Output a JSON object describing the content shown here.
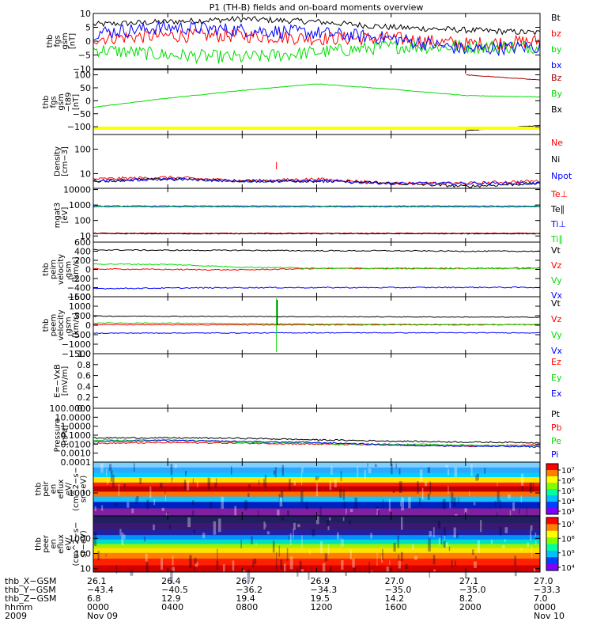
{
  "title": "P1 (TH-B) fields and on-board moments overview",
  "panels": [
    {
      "id": "fgs",
      "ylabel": [
        "thb",
        "fgs",
        "gsm",
        "[nT]"
      ],
      "ticks": [
        {
          "v": 10,
          "t": "10"
        },
        {
          "v": 5,
          "t": "5"
        },
        {
          "v": 0,
          "t": "0"
        },
        {
          "v": -5,
          "t": "−5"
        },
        {
          "v": -10,
          "t": "−10"
        }
      ],
      "ymin": -10,
      "ymax": 10,
      "scale": "linear",
      "legend": [
        {
          "t": "Bt",
          "c": "#000000"
        },
        {
          "t": "bz",
          "c": "#ff0000"
        },
        {
          "t": "by",
          "c": "#00dd00"
        },
        {
          "t": "bx",
          "c": "#0000ff"
        }
      ]
    },
    {
      "id": "fgs_t89",
      "ylabel": [
        "thb",
        "fgs",
        "gsm",
        "−t89",
        "[nT]"
      ],
      "ticks": [
        {
          "v": 100,
          "t": "100"
        },
        {
          "v": 50,
          "t": "50"
        },
        {
          "v": 0,
          "t": "0"
        },
        {
          "v": -50,
          "t": "−50"
        },
        {
          "v": -100,
          "t": "−100"
        }
      ],
      "ymin": -130,
      "ymax": 120,
      "scale": "linear",
      "legend": [
        {
          "t": "Bz",
          "c": "#aa0000"
        },
        {
          "t": "By",
          "c": "#00dd00"
        },
        {
          "t": "Bx",
          "c": "#000000"
        }
      ]
    },
    {
      "id": "density",
      "ylabel": [
        "Density",
        "[cm−3]"
      ],
      "ticks": [
        {
          "v": 100,
          "t": "100"
        },
        {
          "v": 10,
          "t": "10"
        }
      ],
      "ymin": 2.5,
      "ymax": 400,
      "scale": "log",
      "legend": [
        {
          "t": "Ne",
          "c": "#ff0000"
        },
        {
          "t": "Ni",
          "c": "#000000"
        },
        {
          "t": "Npot",
          "c": "#0000ff"
        }
      ]
    },
    {
      "id": "temp",
      "ylabel": [
        "mgat3",
        "[eV]"
      ],
      "ticks": [
        {
          "v": 10000,
          "t": "10000"
        },
        {
          "v": 1000,
          "t": "1000"
        },
        {
          "v": 100,
          "t": "100"
        },
        {
          "v": 10,
          "t": "10"
        }
      ],
      "ymin": 4,
      "ymax": 12000,
      "scale": "log",
      "legend": [
        {
          "t": "Te⊥",
          "c": "#ff0000"
        },
        {
          "t": "Te∥",
          "c": "#000000"
        },
        {
          "t": "Ti⊥",
          "c": "#0000ff"
        },
        {
          "t": "Ti∥",
          "c": "#00dd00"
        }
      ]
    },
    {
      "id": "peim_v",
      "ylabel": [
        "thb",
        "peim",
        "velocity",
        "gsm",
        "[km/s]"
      ],
      "ticks": [
        {
          "v": 600,
          "t": "600"
        },
        {
          "v": 400,
          "t": "400"
        },
        {
          "v": 200,
          "t": "200"
        },
        {
          "v": 0,
          "t": "0"
        },
        {
          "v": -200,
          "t": "−200"
        },
        {
          "v": -400,
          "t": "−400"
        },
        {
          "v": -600,
          "t": "−600"
        }
      ],
      "ymin": -600,
      "ymax": 600,
      "scale": "linear",
      "legend": [
        {
          "t": "Vt",
          "c": "#000000"
        },
        {
          "t": "Vz",
          "c": "#ff0000"
        },
        {
          "t": "Vy",
          "c": "#00dd00"
        },
        {
          "t": "Vx",
          "c": "#0000ff"
        }
      ]
    },
    {
      "id": "peem_v",
      "ylabel": [
        "thb",
        "peem",
        "velocity",
        "gsm",
        "[km/s]"
      ],
      "ticks": [
        {
          "v": 1500,
          "t": "1500"
        },
        {
          "v": 1000,
          "t": "1000"
        },
        {
          "v": 500,
          "t": "500"
        },
        {
          "v": 0,
          "t": "0"
        },
        {
          "v": -500,
          "t": "−500"
        },
        {
          "v": -1000,
          "t": "−1000"
        },
        {
          "v": -1500,
          "t": "−1500"
        }
      ],
      "ymin": -1500,
      "ymax": 1500,
      "scale": "linear",
      "legend": [
        {
          "t": "Vt",
          "c": "#000000"
        },
        {
          "t": "Vz",
          "c": "#ff0000"
        },
        {
          "t": "Vy",
          "c": "#00dd00"
        },
        {
          "t": "Vx",
          "c": "#0000ff"
        }
      ]
    },
    {
      "id": "efield",
      "ylabel": [
        "E=−VxB",
        "[mV/m]"
      ],
      "ticks": [
        {
          "v": 1.0,
          "t": "1.0"
        },
        {
          "v": 0.8,
          "t": "0.8"
        },
        {
          "v": 0.6,
          "t": "0.6"
        },
        {
          "v": 0.4,
          "t": "0.4"
        },
        {
          "v": 0.2,
          "t": "0.2"
        },
        {
          "v": 0.0,
          "t": "0.0"
        }
      ],
      "ymin": 0,
      "ymax": 1,
      "scale": "linear",
      "legend": [
        {
          "t": "Ez",
          "c": "#ff0000"
        },
        {
          "t": "Ey",
          "c": "#00dd00"
        },
        {
          "t": "Ex",
          "c": "#0000ff"
        }
      ]
    },
    {
      "id": "pressure",
      "ylabel": [
        "Pressure",
        "[nPa]"
      ],
      "ticks": [
        {
          "v": 100,
          "t": "100.0000"
        },
        {
          "v": 10,
          "t": "10.0000"
        },
        {
          "v": 1,
          "t": "1.0000"
        },
        {
          "v": 0.1,
          "t": "0.1000"
        },
        {
          "v": 0.01,
          "t": "0.0100"
        },
        {
          "v": 0.001,
          "t": "0.0010"
        },
        {
          "v": 0.0001,
          "t": "0.0001"
        }
      ],
      "ymin": 0.0001,
      "ymax": 100,
      "scale": "log",
      "legend": [
        {
          "t": "Pt",
          "c": "#000000"
        },
        {
          "t": "Pb",
          "c": "#ff0000"
        },
        {
          "t": "Pe",
          "c": "#00dd00"
        },
        {
          "t": "Pi",
          "c": "#0000ff"
        }
      ]
    },
    {
      "id": "peir_spec",
      "ylabel": [
        "thb",
        "peir",
        "en",
        "eflux",
        "eV/",
        "(cm^2−s−",
        "sr−eV)"
      ],
      "ticks": [
        {
          "v": 1000,
          "t": "1000"
        }
      ],
      "ymin": 80,
      "ymax": 30000,
      "scale": "log",
      "colorbar": [
        "10⁷",
        "10⁶",
        "10⁵",
        "10⁴",
        "10³"
      ]
    },
    {
      "id": "peer_spec",
      "ylabel": [
        "thb",
        "peer",
        "en",
        "eflux",
        "eV/",
        "(cm^2−s−",
        "sr−eV)"
      ],
      "ticks": [
        {
          "v": 1000,
          "t": "1000"
        },
        {
          "v": 100,
          "t": "100"
        },
        {
          "v": 10,
          "t": "10"
        }
      ],
      "ymin": 6,
      "ymax": 30000,
      "scale": "log",
      "colorbar": [
        "10⁷",
        "10⁶",
        "10⁵",
        "10⁴"
      ]
    }
  ],
  "chart_data": [
    {
      "type": "line",
      "title": "P1 (TH-B) fields and on-board moments overview",
      "ylabel": "thb fgs gsm [nT]",
      "x": [
        "0000",
        "0400",
        "0800",
        "1200",
        "1600",
        "2000",
        "0000"
      ],
      "ylim": [
        -10,
        10
      ],
      "series": [
        {
          "name": "Bt",
          "values": [
            6,
            7,
            8,
            7,
            5,
            4,
            3
          ]
        },
        {
          "name": "bz",
          "values": [
            1,
            2,
            2,
            1,
            1,
            -1,
            0
          ]
        },
        {
          "name": "by",
          "values": [
            -3,
            -5,
            -6,
            -4,
            -2,
            -2,
            -2
          ]
        },
        {
          "name": "bx",
          "values": [
            3,
            5,
            4,
            3,
            1,
            -3,
            -2
          ]
        }
      ]
    },
    {
      "type": "line",
      "ylabel": "thb fgs gsm −t89 [nT]",
      "x": [
        "0000",
        "0400",
        "0800",
        "1200",
        "1600",
        "2000",
        "0000"
      ],
      "ylim": [
        -130,
        120
      ],
      "series": [
        {
          "name": "Bz",
          "values": [
            null,
            null,
            null,
            null,
            null,
            100,
            80
          ]
        },
        {
          "name": "By",
          "values": [
            -25,
            10,
            40,
            65,
            45,
            20,
            15
          ]
        },
        {
          "name": "Bx",
          "values": [
            null,
            null,
            null,
            null,
            null,
            -115,
            -95
          ]
        }
      ]
    },
    {
      "type": "line",
      "ylabel": "Density [cm−3]",
      "x": [
        "0000",
        "0400",
        "0800",
        "1200",
        "1600",
        "2000",
        "0000"
      ],
      "ylim": [
        2.5,
        400
      ],
      "scale": "log",
      "series": [
        {
          "name": "Ne",
          "values": [
            6,
            7,
            5,
            6,
            4,
            4,
            5
          ]
        },
        {
          "name": "Ni",
          "values": [
            5,
            6,
            5,
            5,
            4,
            3,
            4
          ]
        },
        {
          "name": "Npot",
          "values": [
            5,
            6,
            5,
            5,
            4,
            4,
            4
          ]
        }
      ]
    },
    {
      "type": "line",
      "ylabel": "mgat3 [eV]",
      "x": [
        "0000",
        "0400",
        "0800",
        "1200",
        "1600",
        "2000",
        "0000"
      ],
      "ylim": [
        4,
        12000
      ],
      "scale": "log",
      "series": [
        {
          "name": "Te⊥",
          "values": [
            15,
            15,
            15,
            15,
            15,
            15,
            15
          ]
        },
        {
          "name": "Te∥",
          "values": [
            14,
            14,
            14,
            14,
            14,
            14,
            14
          ]
        },
        {
          "name": "Ti⊥",
          "values": [
            850,
            850,
            850,
            850,
            850,
            850,
            850
          ]
        },
        {
          "name": "Ti∥",
          "values": [
            750,
            750,
            750,
            750,
            750,
            750,
            750
          ]
        }
      ]
    },
    {
      "type": "line",
      "ylabel": "thb peim velocity gsm [km/s]",
      "x": [
        "0000",
        "0400",
        "0800",
        "1200",
        "1600",
        "2000",
        "0000"
      ],
      "ylim": [
        -600,
        600
      ],
      "series": [
        {
          "name": "Vt",
          "values": [
            430,
            420,
            420,
            410,
            410,
            400,
            400
          ]
        },
        {
          "name": "Vz",
          "values": [
            10,
            0,
            -10,
            20,
            20,
            25,
            30
          ]
        },
        {
          "name": "Vy",
          "values": [
            120,
            110,
            50,
            30,
            20,
            20,
            20
          ]
        },
        {
          "name": "Vx",
          "values": [
            -420,
            -410,
            -400,
            -400,
            -400,
            -395,
            -395
          ]
        }
      ]
    },
    {
      "type": "line",
      "ylabel": "thb peem velocity gsm [km/s]",
      "x": [
        "0000",
        "0400",
        "0800",
        "1200",
        "1600",
        "2000",
        "0000"
      ],
      "ylim": [
        -1500,
        1500
      ],
      "series": [
        {
          "name": "Vt",
          "values": [
            480,
            470,
            460,
            450,
            440,
            430,
            420
          ]
        },
        {
          "name": "Vz",
          "values": [
            30,
            20,
            20,
            20,
            20,
            20,
            30
          ]
        },
        {
          "name": "Vy",
          "values": [
            120,
            110,
            80,
            60,
            50,
            40,
            40
          ]
        },
        {
          "name": "Vx",
          "values": [
            -420,
            -410,
            -410,
            -400,
            -400,
            -400,
            -400
          ]
        }
      ]
    },
    {
      "type": "line",
      "ylabel": "E=−VxB [mV/m]",
      "ylim": [
        0,
        1
      ],
      "series": [
        {
          "name": "Ez",
          "values": []
        },
        {
          "name": "Ey",
          "values": []
        },
        {
          "name": "Ex",
          "values": []
        }
      ]
    },
    {
      "type": "line",
      "ylabel": "Pressure [nPa]",
      "x": [
        "0000",
        "0400",
        "0800",
        "1200",
        "1600",
        "2000",
        "0000"
      ],
      "ylim": [
        0.0001,
        100
      ],
      "scale": "log",
      "series": [
        {
          "name": "Pt",
          "values": [
            0.05,
            0.05,
            0.045,
            0.03,
            0.022,
            0.017,
            0.015
          ]
        },
        {
          "name": "Pb",
          "values": [
            0.012,
            0.015,
            0.013,
            0.01,
            0.008,
            0.006,
            0.008
          ]
        },
        {
          "name": "Pe",
          "values": [
            0.025,
            0.03,
            0.015,
            0.012,
            0.01,
            0.008,
            0.006
          ]
        },
        {
          "name": "Pi",
          "values": [
            0.02,
            0.025,
            0.02,
            0.015,
            0.008,
            0.006,
            0.005
          ]
        }
      ]
    },
    {
      "type": "heatmap",
      "ylabel": "thb peir en eflux eV/(cm^2−s−sr−eV)",
      "colorbar": [
        "10³",
        "10⁴",
        "10⁵",
        "10⁶",
        "10⁷"
      ]
    },
    {
      "type": "heatmap",
      "ylabel": "thb peer en eflux eV/(cm^2−s−sr−eV)",
      "colorbar": [
        "10⁴",
        "10⁵",
        "10⁶",
        "10⁷"
      ]
    }
  ],
  "xaxis": {
    "tick_fracs": [
      0,
      0.1667,
      0.3333,
      0.5,
      0.6667,
      0.8333,
      1
    ],
    "rows": [
      {
        "label": "thb_X−GSM",
        "values": [
          "26.1",
          "26.4",
          "26.7",
          "26.9",
          "27.0",
          "27.1",
          "27.0"
        ]
      },
      {
        "label": "thb_Y−GSM",
        "values": [
          "−43.4",
          "−40.5",
          "−36.2",
          "−34.3",
          "−35.0",
          "−35.0",
          "−33.3"
        ]
      },
      {
        "label": "thb_Z−GSM",
        "values": [
          "6.8",
          "12.9",
          "19.4",
          "19.5",
          "14.2",
          "8.2",
          "7.0"
        ]
      },
      {
        "label": "hhmm",
        "values": [
          "0000",
          "0400",
          "0800",
          "1200",
          "1600",
          "2000",
          "0000"
        ]
      },
      {
        "label": "2009",
        "values": [
          "Nov 09",
          "",
          "",
          "",
          "",
          "",
          "Nov 10"
        ]
      }
    ]
  }
}
